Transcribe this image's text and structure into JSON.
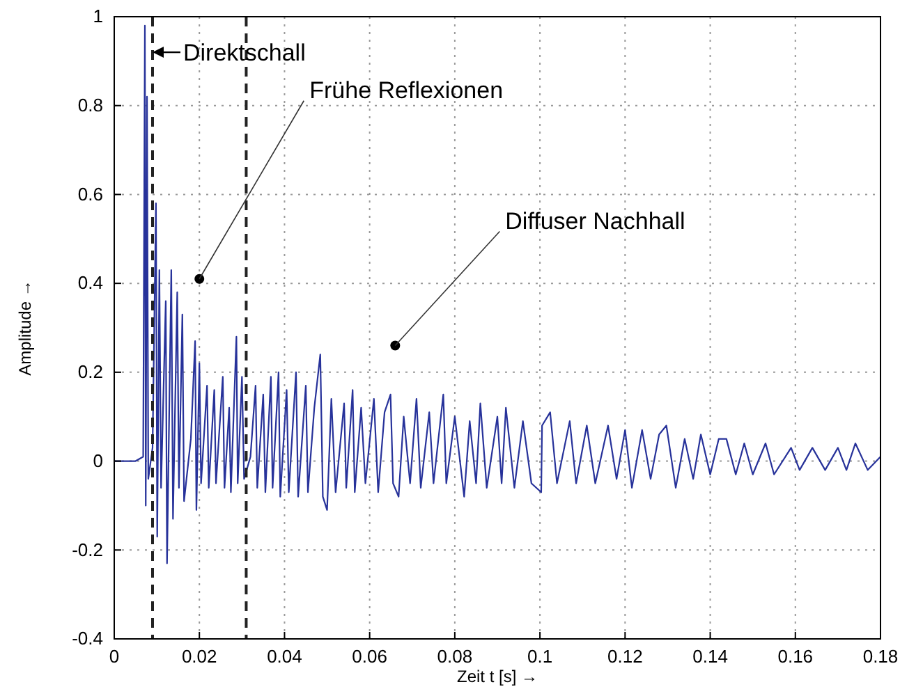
{
  "chart_data": {
    "type": "line",
    "xlabel": "Zeit t [s] →",
    "ylabel": "Amplitude →",
    "xlim": [
      0,
      0.18
    ],
    "xticks": [
      0,
      0.02,
      0.04,
      0.06,
      0.08,
      0.1,
      0.12,
      0.14,
      0.16,
      0.18
    ],
    "ylim": [
      -0.4,
      1
    ],
    "yticks": [
      -0.4,
      -0.2,
      0,
      0.2,
      0.4,
      0.6,
      0.8,
      1
    ],
    "grid": true,
    "marker": "none",
    "line_style": "solid",
    "ref_lines": [
      {
        "axis": "x",
        "value": 0.009,
        "color": "#222222",
        "line_style": "dashed"
      },
      {
        "axis": "x",
        "value": 0.031,
        "color": "#222222",
        "line_style": "dashed"
      }
    ],
    "annotations": [
      {
        "text": "Direktschall",
        "x": 0.009,
        "y": 0.92
      },
      {
        "text": "Frühe Reflexionen",
        "x": 0.02,
        "y": 0.41
      },
      {
        "text": "Diffuser Nachhall",
        "x": 0.066,
        "y": 0.26
      }
    ],
    "series": [
      {
        "color": "#27329a",
        "x": [
          0,
          0.005,
          0.0068,
          0.0072,
          0.0074,
          0.0077,
          0.008,
          0.009,
          0.0098,
          0.0101,
          0.0106,
          0.011,
          0.0121,
          0.0124,
          0.0134,
          0.0138,
          0.0148,
          0.0152,
          0.016,
          0.0164,
          0.018,
          0.019,
          0.0193,
          0.02,
          0.0204,
          0.0218,
          0.0222,
          0.0235,
          0.0239,
          0.0255,
          0.0259,
          0.027,
          0.0274,
          0.0287,
          0.029,
          0.03,
          0.0305,
          0.032,
          0.0332,
          0.0336,
          0.035,
          0.0355,
          0.0368,
          0.0372,
          0.0386,
          0.039,
          0.0405,
          0.041,
          0.0427,
          0.0432,
          0.045,
          0.0455,
          0.047,
          0.0484,
          0.049,
          0.05,
          0.051,
          0.052,
          0.054,
          0.0545,
          0.056,
          0.0565,
          0.058,
          0.059,
          0.061,
          0.062,
          0.0635,
          0.0649,
          0.0655,
          0.0668,
          0.068,
          0.0695,
          0.071,
          0.072,
          0.074,
          0.075,
          0.0773,
          0.078,
          0.08,
          0.0822,
          0.0835,
          0.085,
          0.086,
          0.0875,
          0.09,
          0.091,
          0.092,
          0.094,
          0.096,
          0.098,
          0.1003,
          0.1005,
          0.1024,
          0.104,
          0.107,
          0.1085,
          0.111,
          0.113,
          0.116,
          0.118,
          0.12,
          0.1216,
          0.124,
          0.126,
          0.128,
          0.1297,
          0.1319,
          0.134,
          0.136,
          0.1378,
          0.14,
          0.142,
          0.1438,
          0.146,
          0.148,
          0.15,
          0.153,
          0.155,
          0.159,
          0.161,
          0.164,
          0.167,
          0.17,
          0.172,
          0.1741,
          0.177,
          0.18
        ],
        "values": [
          0,
          0,
          0.01,
          0.98,
          -0.1,
          0.82,
          -0.04,
          0.03,
          0.58,
          -0.17,
          0.43,
          -0.06,
          0.36,
          -0.23,
          0.43,
          -0.13,
          0.38,
          -0.06,
          0.33,
          -0.09,
          0.05,
          0.27,
          -0.11,
          0.22,
          -0.05,
          0.17,
          -0.06,
          0.16,
          -0.05,
          0.19,
          -0.06,
          0.12,
          -0.07,
          0.28,
          -0.05,
          0.19,
          -0.04,
          0.01,
          0.17,
          -0.06,
          0.15,
          -0.07,
          0.19,
          -0.06,
          0.2,
          -0.08,
          0.16,
          -0.07,
          0.2,
          -0.08,
          0.17,
          -0.07,
          0.12,
          0.24,
          -0.08,
          -0.11,
          0.14,
          -0.07,
          0.13,
          -0.06,
          0.16,
          -0.07,
          0.12,
          -0.05,
          0.14,
          -0.07,
          0.11,
          0.15,
          -0.05,
          -0.08,
          0.1,
          -0.05,
          0.14,
          -0.06,
          0.11,
          -0.05,
          0.15,
          -0.05,
          0.1,
          -0.08,
          0.09,
          -0.05,
          0.13,
          -0.06,
          0.1,
          -0.05,
          0.12,
          -0.06,
          0.09,
          -0.05,
          -0.07,
          0.08,
          0.11,
          -0.05,
          0.09,
          -0.05,
          0.08,
          -0.05,
          0.08,
          -0.04,
          0.07,
          -0.06,
          0.07,
          -0.04,
          0.06,
          0.08,
          -0.06,
          0.05,
          -0.04,
          0.06,
          -0.03,
          0.05,
          0.05,
          -0.03,
          0.04,
          -0.03,
          0.04,
          -0.03,
          0.03,
          -0.02,
          0.03,
          -0.02,
          0.03,
          -0.02,
          0.04,
          -0.02,
          0.01
        ]
      }
    ]
  }
}
